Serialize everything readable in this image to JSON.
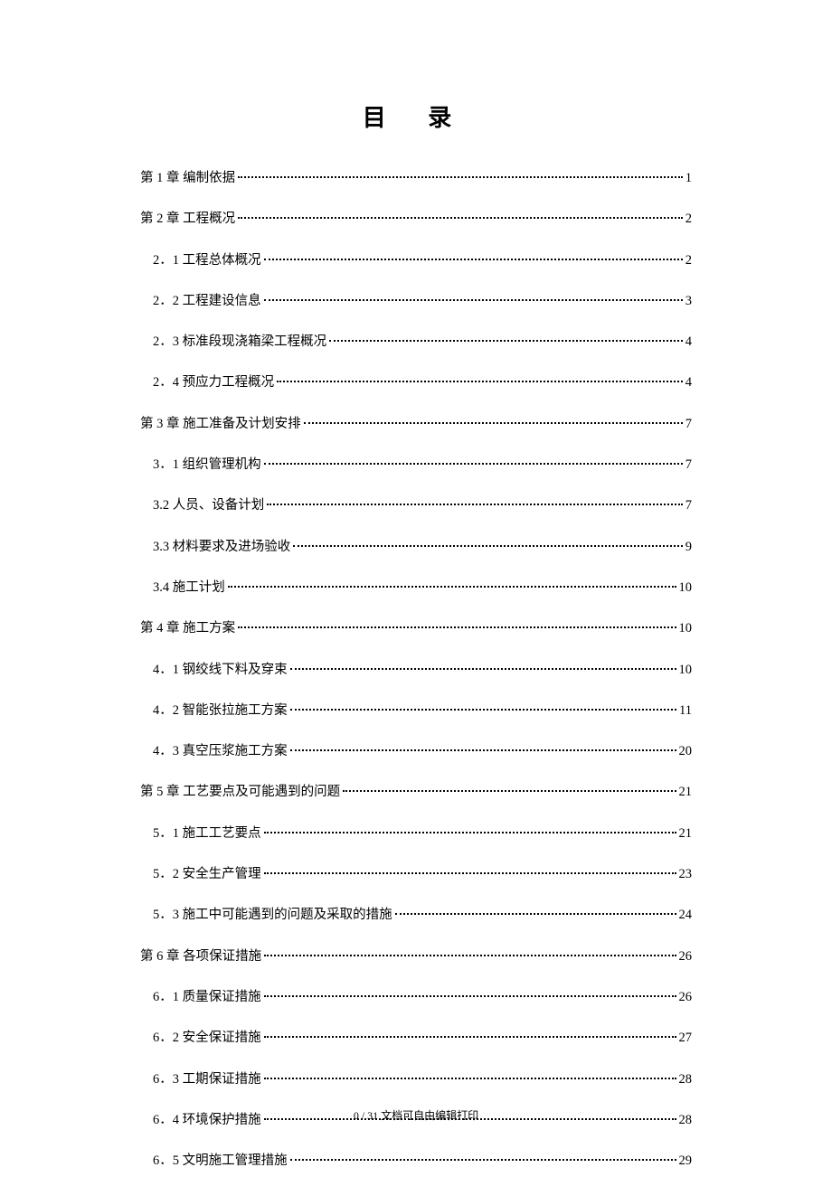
{
  "title": "目 录",
  "toc": [
    {
      "level": 1,
      "label": "第 1 章  编制依据",
      "page": "1"
    },
    {
      "level": 1,
      "label": "第 2 章  工程概况",
      "page": "2"
    },
    {
      "level": 2,
      "label": "2．1  工程总体概况",
      "page": "2"
    },
    {
      "level": 2,
      "label": "2．2  工程建设信息",
      "page": "3"
    },
    {
      "level": 2,
      "label": "2．3  标准段现浇箱梁工程概况",
      "page": "4"
    },
    {
      "level": 2,
      "label": "2．4  预应力工程概况",
      "page": "4"
    },
    {
      "level": 1,
      "label": "第 3 章  施工准备及计划安排",
      "page": "7"
    },
    {
      "level": 2,
      "label": "3．1  组织管理机构",
      "page": "7"
    },
    {
      "level": 2,
      "label": "3.2  人员、设备计划",
      "page": "7"
    },
    {
      "level": 2,
      "label": "3.3  材料要求及进场验收",
      "page": "9"
    },
    {
      "level": 2,
      "label": "3.4  施工计划",
      "page": "10"
    },
    {
      "level": 1,
      "label": "第 4 章  施工方案",
      "page": "10"
    },
    {
      "level": 2,
      "label": "4．1  钢绞线下料及穿束",
      "page": "10"
    },
    {
      "level": 2,
      "label": "4．2  智能张拉施工方案",
      "page": "11"
    },
    {
      "level": 2,
      "label": "4．3  真空压浆施工方案",
      "page": "20"
    },
    {
      "level": 1,
      "label": "第 5 章  工艺要点及可能遇到的问题",
      "page": "21"
    },
    {
      "level": 2,
      "label": "5．1  施工工艺要点",
      "page": "21"
    },
    {
      "level": 2,
      "label": "5．2  安全生产管理",
      "page": "23"
    },
    {
      "level": 2,
      "label": "5．3  施工中可能遇到的问题及采取的措施",
      "page": "24"
    },
    {
      "level": 1,
      "label": "第 6 章  各项保证措施",
      "page": "26"
    },
    {
      "level": 2,
      "label": "6．1  质量保证措施",
      "page": "26"
    },
    {
      "level": 2,
      "label": "6．2  安全保证措施",
      "page": "27"
    },
    {
      "level": 2,
      "label": "6．3  工期保证措施",
      "page": "28"
    },
    {
      "level": 2,
      "label": "6．4  环境保护措施",
      "page": "28"
    },
    {
      "level": 2,
      "label": "6．5  文明施工管理措施",
      "page": "29"
    }
  ],
  "footer": "0 / 31 文档可自由编辑打印"
}
